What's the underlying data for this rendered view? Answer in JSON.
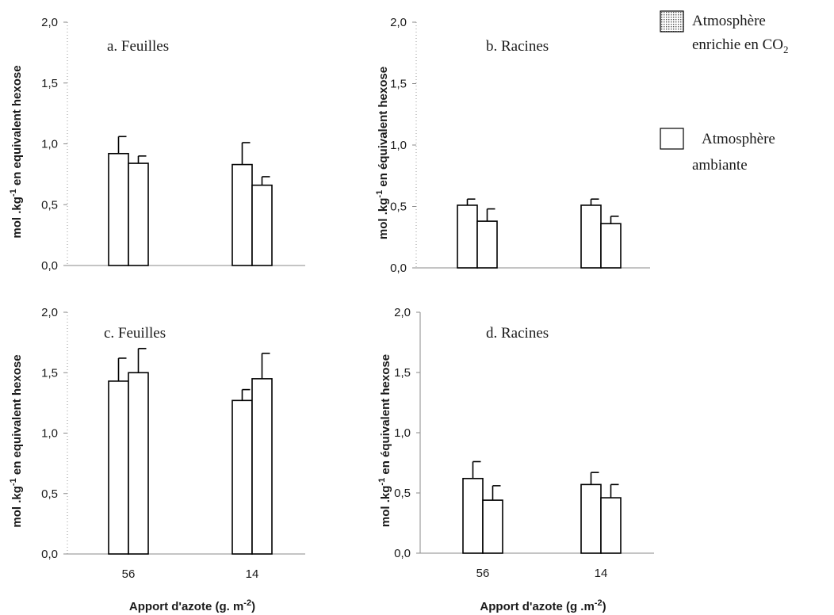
{
  "legend": {
    "co2_line1": "Atmosphère",
    "co2_line2": "enrichie en CO",
    "co2_sub": "2",
    "amb_line1": "Atmosphère",
    "amb_line2": "ambiante"
  },
  "chart_data": [
    {
      "type": "bar",
      "title": "a. Feuilles",
      "ylabel": "mol .kg-1 en equivalent hexose",
      "xlabel": "",
      "categories": [
        "56",
        "14"
      ],
      "ylim": [
        0,
        2.0
      ],
      "yticks": [
        "2,0",
        "1,5",
        "1,0",
        "0,5",
        "0,0"
      ],
      "show_xticks": false,
      "series": [
        {
          "name": "Atmosphère enrichie en CO2",
          "values": [
            0.92,
            0.83
          ],
          "errors": [
            0.14,
            0.18
          ]
        },
        {
          "name": "Atmosphère ambiante",
          "values": [
            0.84,
            0.66
          ],
          "errors": [
            0.06,
            0.07
          ]
        }
      ]
    },
    {
      "type": "bar",
      "title": "b. Racines",
      "ylabel": "mol .kg-1 en équivalent hexose",
      "xlabel": "",
      "categories": [
        "56",
        "14"
      ],
      "ylim": [
        0,
        2.0
      ],
      "yticks": [
        "2,0",
        "1,5",
        "1,0",
        "0,5",
        "0,0"
      ],
      "show_xticks": false,
      "series": [
        {
          "name": "Atmosphère enrichie en CO2",
          "values": [
            0.51,
            0.51
          ],
          "errors": [
            0.05,
            0.05
          ]
        },
        {
          "name": "Atmosphère ambiante",
          "values": [
            0.38,
            0.36
          ],
          "errors": [
            0.1,
            0.06
          ]
        }
      ]
    },
    {
      "type": "bar",
      "title": "c. Feuilles",
      "ylabel": "mol .kg-1 en equivalent hexose",
      "xlabel": "Apport d'azote (g. m-2)",
      "categories": [
        "56",
        "14"
      ],
      "ylim": [
        0,
        2.0
      ],
      "yticks": [
        "2,0",
        "1,5",
        "1,0",
        "0,5",
        "0,0"
      ],
      "show_xticks": true,
      "series": [
        {
          "name": "Atmosphère enrichie en CO2",
          "values": [
            1.43,
            1.27
          ],
          "errors": [
            0.19,
            0.09
          ]
        },
        {
          "name": "Atmosphère ambiante",
          "values": [
            1.5,
            1.45
          ],
          "errors": [
            0.2,
            0.21
          ]
        }
      ]
    },
    {
      "type": "bar",
      "title": "d. Racines",
      "ylabel": "mol .kg-1 en équivalent hexose",
      "xlabel": "Apport d'azote (g .m-2)",
      "categories": [
        "56",
        "14"
      ],
      "ylim": [
        0,
        2.0
      ],
      "yticks": [
        "2,0",
        "1,5",
        "1,0",
        "0,5",
        "0,0"
      ],
      "show_xticks": true,
      "series": [
        {
          "name": "Atmosphère enrichie en CO2",
          "values": [
            0.62,
            0.57
          ],
          "errors": [
            0.14,
            0.1
          ]
        },
        {
          "name": "Atmosphère ambiante",
          "values": [
            0.44,
            0.46
          ],
          "errors": [
            0.12,
            0.11
          ]
        }
      ]
    }
  ]
}
